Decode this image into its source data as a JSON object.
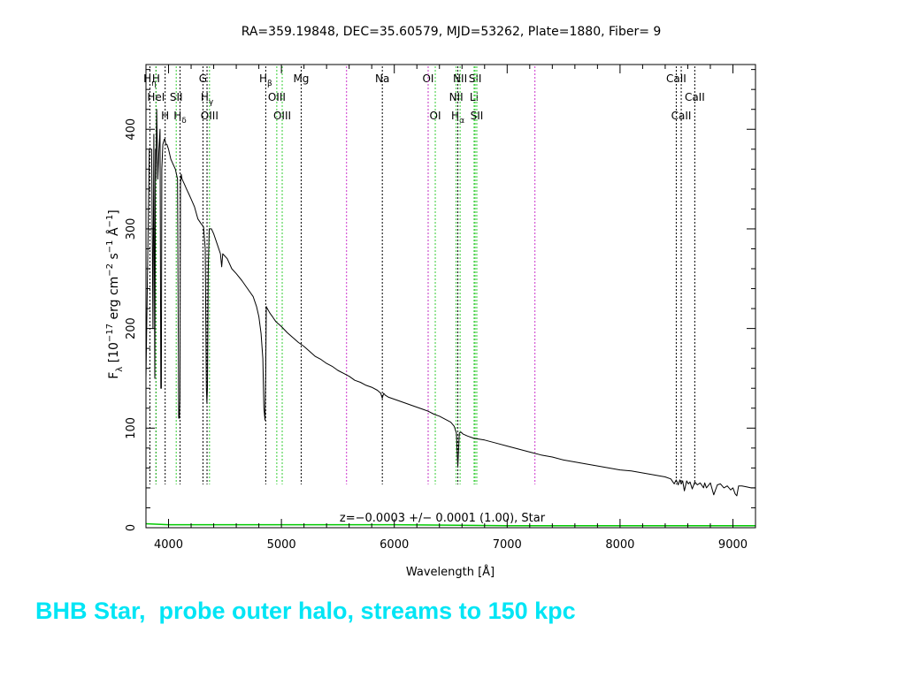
{
  "slide": {
    "caption": "BHB Star,  probe outer halo, streams to 150 kpc",
    "caption_color": "#00e5f5"
  },
  "chart_data": {
    "type": "line",
    "title": "RA=359.19848, DEC=35.60579, MJD=53262, Plate=1880, Fiber=  9",
    "xlabel": "Wavelength [Å]",
    "ylabel": "F_λ [10^-17 erg cm^-2 s^-1 Å^-1]",
    "ylabel_parts": {
      "f": "F",
      "lambda": "λ",
      "open": " [10",
      "e17": "−17",
      "erg": " erg cm",
      "e2": "−2",
      "s": " s",
      "e1": "−1",
      "unit": " Å",
      "e1b": "−1",
      "close": "]"
    },
    "xlim": [
      3800,
      9200
    ],
    "ylim": [
      0,
      465
    ],
    "xticks": [
      4000,
      5000,
      6000,
      7000,
      8000,
      9000
    ],
    "yticks": [
      0,
      100,
      200,
      300,
      400
    ],
    "annotation": "z=−0.0003 +/− 0.0001 (1.00), Star",
    "colors": {
      "spectrum": "#000000",
      "error": "#00c800",
      "emission_line": "#33cc33",
      "absorption_line": "#000000",
      "sky_line": "#cc33cc"
    },
    "series": [
      {
        "x": [
          3800,
          3830,
          3850,
          3862,
          3870,
          3878,
          3885,
          3888,
          3895,
          3905,
          3915,
          3925,
          3932,
          3936,
          3940,
          3950,
          3962,
          3968,
          3975,
          3985,
          4000,
          4020,
          4040,
          4060,
          4080,
          4090,
          4096,
          4101,
          4106,
          4112,
          4120,
          4140,
          4160,
          4180,
          4200,
          4230,
          4260,
          4290,
          4310,
          4325,
          4335,
          4340,
          4345,
          4352,
          4360,
          4380,
          4400,
          4430,
          4460,
          4471,
          4480,
          4520,
          4560,
          4600,
          4650,
          4700,
          4750,
          4780,
          4800,
          4820,
          4835,
          4845,
          4855,
          4861,
          4866,
          4875,
          4885,
          4900,
          4920,
          4950,
          5000,
          5050,
          5100,
          5150,
          5200,
          5250,
          5300,
          5350,
          5400,
          5450,
          5500,
          5550,
          5600,
          5650,
          5700,
          5750,
          5800,
          5850,
          5880,
          5893,
          5906,
          5920,
          5950,
          6000,
          6050,
          6100,
          6150,
          6200,
          6250,
          6300,
          6350,
          6400,
          6450,
          6500,
          6530,
          6550,
          6563,
          6576,
          6590,
          6610,
          6650,
          6700,
          6750,
          6800,
          6900,
          7000,
          7100,
          7200,
          7300,
          7400,
          7500,
          7600,
          7700,
          7800,
          7900,
          8000,
          8100,
          8200,
          8300,
          8400,
          8450,
          8480,
          8498,
          8515,
          8530,
          8542,
          8555,
          8570,
          8590,
          8605,
          8620,
          8640,
          8662,
          8685,
          8710,
          8740,
          8750,
          8765,
          8800,
          8830,
          8862,
          8890,
          8920,
          8950,
          8980,
          9000,
          9020,
          9035,
          9050,
          9080,
          9120,
          9160,
          9200
        ],
        "y": [
          150,
          380,
          380,
          200,
          395,
          150,
          380,
          350,
          420,
          350,
          380,
          400,
          140,
          140,
          360,
          385,
          390,
          390,
          385,
          385,
          380,
          370,
          365,
          360,
          350,
          110,
          110,
          130,
          345,
          355,
          350,
          345,
          340,
          335,
          330,
          322,
          310,
          305,
          302,
          280,
          140,
          125,
          140,
          260,
          300,
          300,
          295,
          285,
          275,
          262,
          275,
          270,
          260,
          255,
          248,
          240,
          232,
          222,
          212,
          195,
          170,
          120,
          108,
          160,
          222,
          220,
          218,
          215,
          212,
          207,
          202,
          196,
          191,
          186,
          182,
          177,
          172,
          169,
          165,
          162,
          158,
          155,
          152,
          148,
          146,
          143,
          141,
          138,
          135,
          130,
          135,
          133,
          131,
          129,
          127,
          125,
          123,
          121,
          119,
          117,
          114,
          112,
          109,
          106,
          102,
          95,
          61,
          95,
          96,
          94,
          92,
          90,
          89,
          88,
          85,
          82,
          79,
          76,
          73,
          71,
          68,
          66,
          64,
          62,
          60,
          58,
          57,
          55,
          53,
          51,
          49,
          44,
          48,
          43,
          48,
          44,
          47,
          37,
          47,
          44,
          46,
          39,
          46,
          43,
          45,
          40,
          45,
          40,
          45,
          33,
          43,
          44,
          40,
          42,
          38,
          40,
          34,
          32,
          42,
          42,
          41,
          40,
          40
        ]
      }
    ],
    "error_series": {
      "x": [
        3800,
        4000,
        5000,
        6000,
        7000,
        8000,
        9000,
        9200
      ],
      "y": [
        4,
        3,
        3,
        3,
        2,
        2,
        2,
        2
      ]
    },
    "line_markers": [
      {
        "label": "H",
        "sub": "η",
        "x": 3835,
        "row": 0,
        "kind": "absorption_line"
      },
      {
        "label": "H",
        "x": 3889,
        "row": 0,
        "kind": "absorption_line"
      },
      {
        "label": "HeI",
        "x": 3889,
        "row": 1,
        "kind": "emission_line"
      },
      {
        "label": "SII",
        "x": 4068,
        "row": 1,
        "kind": "emission_line"
      },
      {
        "label": "H",
        "x": 3970,
        "row": 2,
        "kind": "absorption_line"
      },
      {
        "label": "H",
        "sub": "δ",
        "x": 4102,
        "row": 2,
        "kind": "absorption_line"
      },
      {
        "label": "G",
        "x": 4305,
        "row": 0,
        "kind": "absorption_line"
      },
      {
        "label": "H",
        "sub": "γ",
        "x": 4341,
        "row": 1,
        "kind": "absorption_line"
      },
      {
        "label": "OIII",
        "x": 4363,
        "row": 2,
        "kind": "emission_line"
      },
      {
        "label": "H",
        "sub": "β",
        "x": 4861,
        "row": 0,
        "kind": "absorption_line"
      },
      {
        "label": "OIII",
        "x": 4959,
        "row": 1,
        "kind": "emission_line"
      },
      {
        "label": "OIII",
        "x": 5007,
        "row": 2,
        "kind": "emission_line"
      },
      {
        "label": "Mg",
        "x": 5175,
        "row": 0,
        "kind": "absorption_line"
      },
      {
        "label": "Na",
        "x": 5894,
        "row": 0,
        "kind": "absorption_line"
      },
      {
        "label": "OI",
        "x": 6300,
        "row": 0,
        "kind": "emission_line"
      },
      {
        "label": "OI",
        "x": 6363,
        "row": 2,
        "kind": "emission_line"
      },
      {
        "label": "NII",
        "x": 6548,
        "row": 1,
        "kind": "emission_line"
      },
      {
        "label": "H",
        "sub": "α",
        "x": 6563,
        "row": 2,
        "kind": "absorption_line"
      },
      {
        "label": "NII",
        "x": 6583,
        "row": 0,
        "kind": "emission_line"
      },
      {
        "label": "Li",
        "x": 6707,
        "row": 1,
        "kind": "emission_line"
      },
      {
        "label": "SII",
        "x": 6716,
        "row": 0,
        "kind": "emission_line"
      },
      {
        "label": "SII",
        "x": 6731,
        "row": 2,
        "kind": "emission_line"
      },
      {
        "label": "CaII",
        "x": 8498,
        "row": 0,
        "kind": "absorption_line"
      },
      {
        "label": "CaII",
        "x": 8542,
        "row": 2,
        "kind": "absorption_line"
      },
      {
        "label": "CaII",
        "x": 8662,
        "row": 1,
        "kind": "absorption_line"
      }
    ],
    "sky_lines": [
      5577,
      6300,
      7246
    ],
    "grid": false
  }
}
